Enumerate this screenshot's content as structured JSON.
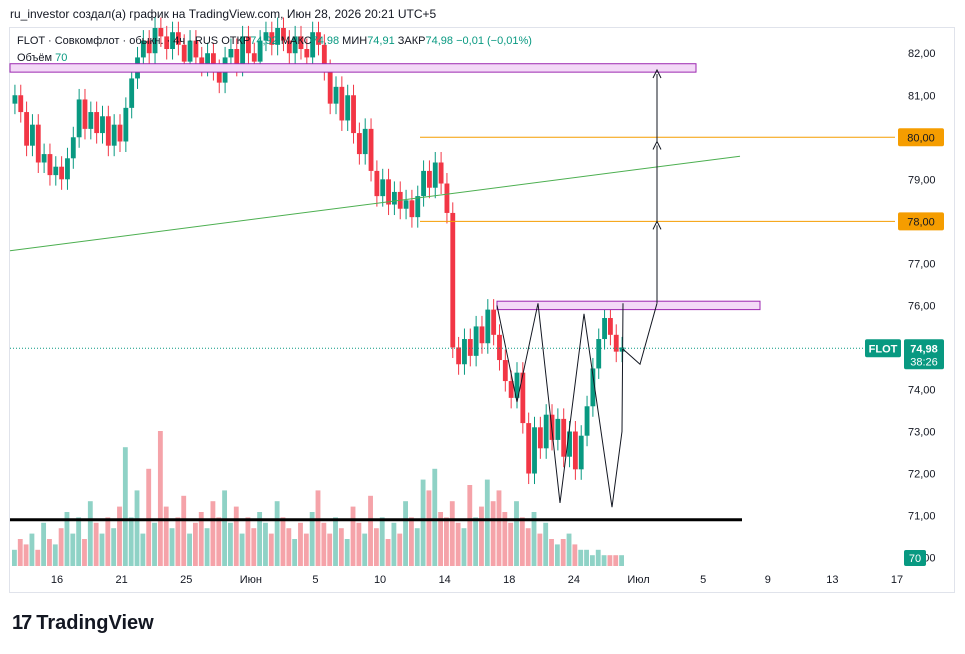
{
  "header": {
    "attribution": "ru_investor создал(а) график на TradingView.com, Июн 28, 2026 20:21 UTC+5"
  },
  "legend": {
    "symbol": "FLOT · Совкомфлот · обыкн. · 4ч · RUS",
    "open_label": "ОТКР",
    "open": "74,92",
    "high_label": "МАКС",
    "high": "74,98",
    "low_label": "МИН",
    "low": "74,91",
    "close_label": "ЗАКР",
    "close": "74,98",
    "change": "−0,01 (−0,01%)"
  },
  "volume_legend": {
    "label": "Объём",
    "value": "70"
  },
  "brand": {
    "name": "TradingView",
    "logo_text": "17"
  },
  "colors": {
    "up": "#089981",
    "down": "#f23645",
    "accent_orange": "#f59d00",
    "trend_green": "#4caf50",
    "zone_fill": "#f3d9f7",
    "zone_border": "#9c27b0"
  },
  "chart_data": {
    "type": "candlestick",
    "symbol": "FLOT",
    "ylim": [
      69.8,
      82.6
    ],
    "y_ticks": [
      "82,00",
      "81,00",
      "80,00",
      "79,00",
      "78,00",
      "77,00",
      "76,00",
      "75,00",
      "74,00",
      "73,00",
      "72,00",
      "71,00",
      "70,00"
    ],
    "x_ticks": [
      "16",
      "21",
      "25",
      "Июн",
      "5",
      "10",
      "14",
      "18",
      "24",
      "Июл",
      "5",
      "9",
      "13",
      "17"
    ],
    "last_price": {
      "label": "FLOT",
      "value": "74,98",
      "countdown": "38:26",
      "y": 74.98
    },
    "volume_badge": "70",
    "levels": [
      {
        "type": "horizontal",
        "y": 80.0,
        "label": "80,00",
        "color": "#f59d00"
      },
      {
        "type": "horizontal",
        "y": 78.0,
        "label": "78,00",
        "color": "#f59d00"
      },
      {
        "type": "support",
        "y": 70.9,
        "color": "#000000"
      }
    ],
    "zones": [
      {
        "y_low": 81.55,
        "y_high": 81.75
      },
      {
        "y_low": 75.9,
        "y_high": 76.1
      }
    ],
    "trendline": {
      "from": 77.3,
      "to": 79.55
    },
    "pattern_w": [
      76.0,
      73.7,
      76.05,
      71.3,
      75.8,
      71.2,
      73.0,
      76.05
    ],
    "projection": [
      74.98,
      74.6,
      76.05,
      78.0,
      79.9,
      81.6
    ],
    "candles_close": [
      81.0,
      80.6,
      79.8,
      80.3,
      79.4,
      79.6,
      79.1,
      79.3,
      79.0,
      79.5,
      80.0,
      80.9,
      80.2,
      80.6,
      80.1,
      80.5,
      79.8,
      80.3,
      79.9,
      80.7,
      81.4,
      81.9,
      82.3,
      82.0,
      82.6,
      82.4,
      82.1,
      82.5,
      82.2,
      81.8,
      82.3,
      81.9,
      81.7,
      82.0,
      81.6,
      81.3,
      81.9,
      82.1,
      81.7,
      82.4,
      82.0,
      81.8,
      82.3,
      82.5,
      82.2,
      82.6,
      82.3,
      82.0,
      82.4,
      82.1,
      81.9,
      82.5,
      82.2,
      81.6,
      80.8,
      81.2,
      80.4,
      81.0,
      80.1,
      79.6,
      80.2,
      79.2,
      78.6,
      79.0,
      78.4,
      78.7,
      78.3,
      78.5,
      78.1,
      78.6,
      79.2,
      78.8,
      79.4,
      78.9,
      78.2,
      75.0,
      74.6,
      75.2,
      74.8,
      75.5,
      75.1,
      75.9,
      75.3,
      74.7,
      74.2,
      73.8,
      74.4,
      73.2,
      72.0,
      73.1,
      72.6,
      73.4,
      72.8,
      73.3,
      72.4,
      73.0,
      72.1,
      72.9,
      73.6,
      74.5,
      75.2,
      75.7,
      75.3,
      74.9,
      75.0
    ],
    "volumes": [
      3,
      5,
      4,
      6,
      3,
      8,
      5,
      4,
      7,
      10,
      6,
      9,
      5,
      12,
      8,
      6,
      9,
      7,
      11,
      22,
      9,
      14,
      6,
      18,
      8,
      25,
      11,
      7,
      9,
      13,
      6,
      8,
      10,
      7,
      12,
      9,
      14,
      8,
      11,
      6,
      9,
      7,
      10,
      8,
      6,
      12,
      9,
      7,
      5,
      8,
      6,
      10,
      14,
      8,
      6,
      9,
      7,
      5,
      11,
      8,
      6,
      13,
      7,
      9,
      5,
      8,
      6,
      12,
      9,
      7,
      16,
      14,
      18,
      10,
      9,
      12,
      8,
      7,
      15,
      9,
      11,
      16,
      12,
      14,
      10,
      8,
      12,
      9,
      7,
      10,
      6,
      8,
      5,
      4,
      5,
      6,
      4,
      3,
      3,
      2,
      3,
      2,
      2,
      2,
      2
    ]
  }
}
